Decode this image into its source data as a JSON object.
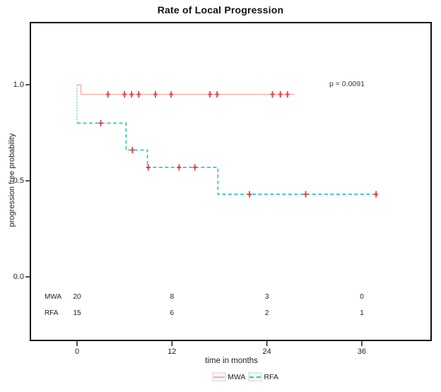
{
  "title": "Rate of Local Progression",
  "annotation": {
    "p_value": "p = 0.0091"
  },
  "axes": {
    "x": {
      "label": "time in months",
      "tick_labels": [
        "0",
        "12",
        "24",
        "36"
      ],
      "tick_values": [
        0,
        12,
        24,
        36
      ]
    },
    "y": {
      "label": "progression free probability",
      "tick_labels": [
        "1.0",
        "0.5",
        "0.0"
      ],
      "tick_values": [
        1.0,
        0.5,
        0.0
      ]
    }
  },
  "chart_data": {
    "type": "line",
    "subtype": "kaplan-meier-step",
    "title": "Rate of Local Progression",
    "xlabel": "time in months",
    "ylabel": "progression free probability",
    "xticks": [
      0,
      12,
      24,
      36
    ],
    "yticks": [
      0,
      0.5,
      1
    ],
    "xlim": [
      -6,
      45
    ],
    "ylim": [
      -0.35,
      1.3
    ],
    "grid": false,
    "legend_position": "bottom",
    "p_value_text": "p = 0.0091",
    "series": [
      {
        "name": "MWA",
        "color": "#ffabab",
        "censor_color": "#ee3030",
        "dash": "solid",
        "steps": [
          [
            0,
            1.0
          ],
          [
            0.5,
            1.0
          ],
          [
            0.5,
            0.95
          ],
          [
            27.5,
            0.95
          ]
        ],
        "censors": [
          [
            3.9,
            0.95
          ],
          [
            6.0,
            0.95
          ],
          [
            6.9,
            0.95
          ],
          [
            7.8,
            0.95
          ],
          [
            9.9,
            0.95
          ],
          [
            11.9,
            0.95
          ],
          [
            16.8,
            0.95
          ],
          [
            17.7,
            0.95
          ],
          [
            24.7,
            0.95
          ],
          [
            25.7,
            0.95
          ],
          [
            26.6,
            0.95
          ]
        ]
      },
      {
        "name": "RFA",
        "color": "#2bc8cd",
        "censor_color": "#ee3030",
        "dash": "dashed",
        "start_drop": {
          "t": 0,
          "from": 1.0,
          "to": 0.8
        },
        "steps": [
          [
            0,
            0.8
          ],
          [
            6.2,
            0.8
          ],
          [
            6.2,
            0.66
          ],
          [
            8.9,
            0.66
          ],
          [
            8.9,
            0.57
          ],
          [
            17.8,
            0.57
          ],
          [
            17.8,
            0.43
          ],
          [
            37.9,
            0.43
          ]
        ],
        "censors": [
          [
            3.0,
            0.8
          ],
          [
            7.0,
            0.66
          ],
          [
            9.0,
            0.57
          ],
          [
            12.9,
            0.57
          ],
          [
            14.9,
            0.57
          ],
          [
            21.8,
            0.43
          ],
          [
            28.9,
            0.43
          ],
          [
            37.8,
            0.43
          ]
        ]
      }
    ],
    "risk_table": {
      "times": [
        0,
        12,
        24,
        36
      ],
      "rows": [
        {
          "label": "MWA",
          "counts": [
            "20",
            "8",
            "3",
            "0"
          ]
        },
        {
          "label": "RFA",
          "counts": [
            "15",
            "6",
            "2",
            "1"
          ]
        }
      ]
    }
  },
  "legend": {
    "items": [
      {
        "label": "MWA",
        "color": "#ffabab",
        "dash": "solid"
      },
      {
        "label": "RFA",
        "color": "#2bc8cd",
        "dash": "dashed"
      }
    ]
  }
}
